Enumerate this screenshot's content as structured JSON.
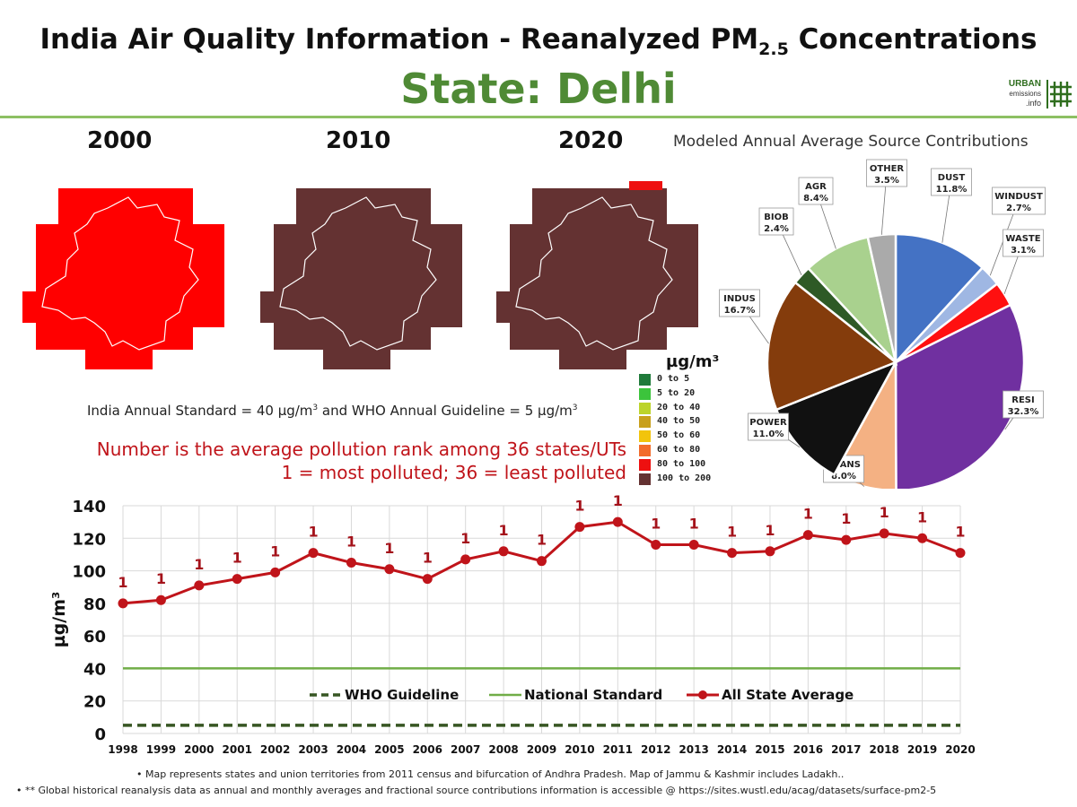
{
  "header": {
    "title_main": "India Air Quality Information - Reanalyzed PM",
    "title_sub": "2.5",
    "title_end": " Concentrations",
    "state": "State: Delhi"
  },
  "logo": {
    "line1": "URBAN",
    "line2": "emissions",
    "line3": ".info"
  },
  "maps": [
    {
      "year": "2000",
      "color": "#ff0000"
    },
    {
      "year": "2010",
      "color": "#643232"
    },
    {
      "year": "2020",
      "color": "#643232"
    }
  ],
  "scale_legend": {
    "unit": "µg/m³",
    "items": [
      {
        "label": "0 to 5",
        "color": "#1f7a3a"
      },
      {
        "label": "5 to 20",
        "color": "#3cc43c"
      },
      {
        "label": "20 to 40",
        "color": "#bcd42a"
      },
      {
        "label": "40 to 50",
        "color": "#c8a01c"
      },
      {
        "label": "50 to 60",
        "color": "#f2c40c"
      },
      {
        "label": "60 to 80",
        "color": "#f26c2c"
      },
      {
        "label": "80 to 100",
        "color": "#ee1010"
      },
      {
        "label": "100 to 200",
        "color": "#643232"
      }
    ]
  },
  "notes": {
    "standard_a": "India Annual Standard = 40 µg/m",
    "standard_b": " and WHO Annual Guideline = 5 µg/m",
    "cube": "3",
    "rank_line1": "Number is the average pollution rank among 36 states/UTs",
    "rank_line2": "1 = most polluted; 36 = least polluted"
  },
  "pie_chart": {
    "title": "Modeled Annual Average Source Contributions",
    "chart_data": {
      "type": "pie",
      "slices": [
        {
          "name": "DUST",
          "value": 11.8,
          "label": "11.8%",
          "color": "#4472c4"
        },
        {
          "name": "WINDUST",
          "value": 2.7,
          "label": "2.7%",
          "color": "#9fb7e3"
        },
        {
          "name": "WASTE",
          "value": 3.1,
          "label": "3.1%",
          "color": "#ff1010"
        },
        {
          "name": "RESI",
          "value": 32.3,
          "label": "32.3%",
          "color": "#7030a0"
        },
        {
          "name": "TRANS",
          "value": 8.0,
          "label": "8.0%",
          "color": "#f4b183"
        },
        {
          "name": "POWER",
          "value": 11.0,
          "label": "11.0%",
          "color": "#111111"
        },
        {
          "name": "INDUS",
          "value": 16.7,
          "label": "16.7%",
          "color": "#843c0c"
        },
        {
          "name": "BIOB",
          "value": 2.4,
          "label": "2.4%",
          "color": "#2e5a26"
        },
        {
          "name": "AGR",
          "value": 8.4,
          "label": "8.4%",
          "color": "#a9d18e"
        },
        {
          "name": "OTHER",
          "value": 3.5,
          "label": "3.5%",
          "color": "#aaaaaa"
        }
      ]
    }
  },
  "chart_data": {
    "type": "line",
    "x": [
      "1998",
      "1999",
      "2000",
      "2001",
      "2002",
      "2003",
      "2004",
      "2005",
      "2006",
      "2007",
      "2008",
      "2009",
      "2010",
      "2011",
      "2012",
      "2013",
      "2014",
      "2015",
      "2016",
      "2017",
      "2018",
      "2019",
      "2020"
    ],
    "series": [
      {
        "name": "All State Average",
        "color": "#c0141a",
        "values": [
          80,
          82,
          91,
          95,
          99,
          111,
          105,
          101,
          95,
          107,
          112,
          106,
          127,
          130,
          116,
          116,
          111,
          112,
          122,
          119,
          123,
          120,
          111
        ],
        "ranks": [
          "1",
          "1",
          "1",
          "1",
          "1",
          "1",
          "1",
          "1",
          "1",
          "1",
          "1",
          "1",
          "1",
          "1",
          "1",
          "1",
          "1",
          "1",
          "1",
          "1",
          "1",
          "1",
          "1"
        ]
      },
      {
        "name": "National Standard",
        "color": "#70ad47",
        "value": 40
      },
      {
        "name": "WHO Guideline",
        "color": "#375623",
        "value": 5
      }
    ],
    "ylabel": "µg/m³",
    "ylim": [
      0,
      140
    ],
    "yticks": [
      "0",
      "20",
      "40",
      "60",
      "80",
      "100",
      "120",
      "140"
    ]
  },
  "footnotes": {
    "line1": "•   Map represents states and union territories from 2011 census and bifurcation of Andhra Pradesh. Map of Jammu & Kashmir includes Ladakh..",
    "line2": "•   ** Global historical reanalysis data as annual and monthly averages and fractional source contributions information is accessible @ https://sites.wustl.edu/acag/datasets/surface-pm2-5"
  }
}
